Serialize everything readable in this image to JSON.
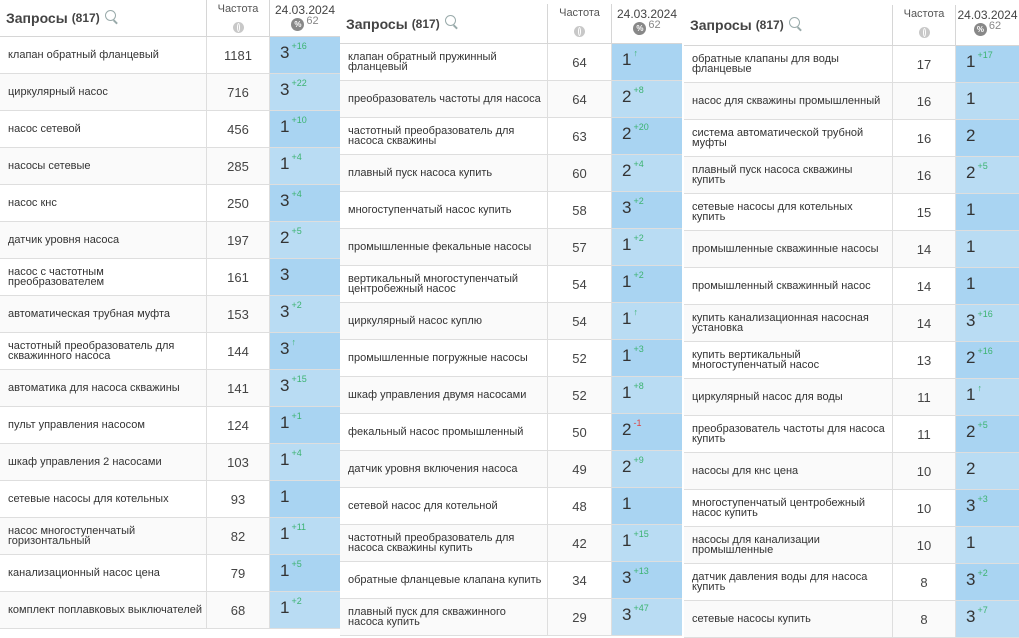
{
  "date": "24.03.2024",
  "date_count": "62",
  "panels": [
    {
      "title": "Запросы",
      "count": "(817)",
      "freq_label": "Частота",
      "rows": [
        {
          "query": "клапан обратный фланцевый",
          "freq": "1181",
          "pos": "3",
          "delta": "+16",
          "dir": "up"
        },
        {
          "query": "циркулярный насос",
          "freq": "716",
          "pos": "3",
          "delta": "+22",
          "dir": "up"
        },
        {
          "query": "насос сетевой",
          "freq": "456",
          "pos": "1",
          "delta": "+10",
          "dir": "up"
        },
        {
          "query": "насосы сетевые",
          "freq": "285",
          "pos": "1",
          "delta": "+4",
          "dir": "up"
        },
        {
          "query": "насос кнс",
          "freq": "250",
          "pos": "3",
          "delta": "+4",
          "dir": "up"
        },
        {
          "query": "датчик уровня насоса",
          "freq": "197",
          "pos": "2",
          "delta": "+5",
          "dir": "up"
        },
        {
          "query": "насос с частотным преобразователем",
          "freq": "161",
          "pos": "3",
          "delta": "",
          "dir": ""
        },
        {
          "query": "автоматическая трубная муфта",
          "freq": "153",
          "pos": "3",
          "delta": "+2",
          "dir": "up"
        },
        {
          "query": "частотный преобразователь для скважинного насоса",
          "freq": "144",
          "pos": "3",
          "delta": "↑",
          "dir": "up"
        },
        {
          "query": "автоматика для насоса скважины",
          "freq": "141",
          "pos": "3",
          "delta": "+15",
          "dir": "up"
        },
        {
          "query": "пульт управления насосом",
          "freq": "124",
          "pos": "1",
          "delta": "+1",
          "dir": "up"
        },
        {
          "query": "шкаф управления 2 насосами",
          "freq": "103",
          "pos": "1",
          "delta": "+4",
          "dir": "up"
        },
        {
          "query": "сетевые насосы для котельных",
          "freq": "93",
          "pos": "1",
          "delta": "",
          "dir": ""
        },
        {
          "query": "насос многоступенчатый горизонтальный",
          "freq": "82",
          "pos": "1",
          "delta": "+11",
          "dir": "up"
        },
        {
          "query": "канализационный насос цена",
          "freq": "79",
          "pos": "1",
          "delta": "+5",
          "dir": "up"
        },
        {
          "query": "комплект поплавковых выключателей",
          "freq": "68",
          "pos": "1",
          "delta": "+2",
          "dir": "up"
        }
      ]
    },
    {
      "title": "Запросы",
      "count": "(817)",
      "freq_label": "Частота",
      "rows": [
        {
          "query": "клапан обратный пружинный фланцевый",
          "freq": "64",
          "pos": "1",
          "delta": "↑",
          "dir": "up"
        },
        {
          "query": "преобразователь частоты для насоса",
          "freq": "64",
          "pos": "2",
          "delta": "+8",
          "dir": "up"
        },
        {
          "query": "частотный преобразователь для насоса скважины",
          "freq": "63",
          "pos": "2",
          "delta": "+20",
          "dir": "up"
        },
        {
          "query": "плавный пуск насоса купить",
          "freq": "60",
          "pos": "2",
          "delta": "+4",
          "dir": "up"
        },
        {
          "query": "многоступенчатый насос купить",
          "freq": "58",
          "pos": "3",
          "delta": "+2",
          "dir": "up"
        },
        {
          "query": "промышленные фекальные насосы",
          "freq": "57",
          "pos": "1",
          "delta": "+2",
          "dir": "up"
        },
        {
          "query": "вертикальный многоступенчатый центробежный насос",
          "freq": "54",
          "pos": "1",
          "delta": "+2",
          "dir": "up"
        },
        {
          "query": "циркулярный насос куплю",
          "freq": "54",
          "pos": "1",
          "delta": "↑",
          "dir": "up"
        },
        {
          "query": "промышленные погружные насосы",
          "freq": "52",
          "pos": "1",
          "delta": "+3",
          "dir": "up"
        },
        {
          "query": "шкаф управления двумя насосами",
          "freq": "52",
          "pos": "1",
          "delta": "+8",
          "dir": "up"
        },
        {
          "query": "фекальный насос промышленный",
          "freq": "50",
          "pos": "2",
          "delta": "-1",
          "dir": "down"
        },
        {
          "query": "датчик уровня включения насоса",
          "freq": "49",
          "pos": "2",
          "delta": "+9",
          "dir": "up"
        },
        {
          "query": "сетевой насос для котельной",
          "freq": "48",
          "pos": "1",
          "delta": "",
          "dir": ""
        },
        {
          "query": "частотный преобразователь для насоса скважины купить",
          "freq": "42",
          "pos": "1",
          "delta": "+15",
          "dir": "up"
        },
        {
          "query": "обратные фланцевые клапана купить",
          "freq": "34",
          "pos": "3",
          "delta": "+13",
          "dir": "up"
        },
        {
          "query": "плавный пуск для скважинного насоса купить",
          "freq": "29",
          "pos": "3",
          "delta": "+47",
          "dir": "up"
        }
      ]
    },
    {
      "title": "Запросы",
      "count": "(817)",
      "freq_label": "Частота",
      "rows": [
        {
          "query": "обратные клапаны для воды фланцевые",
          "freq": "17",
          "pos": "1",
          "delta": "+17",
          "dir": "up"
        },
        {
          "query": "насос для скважины промышленный",
          "freq": "16",
          "pos": "1",
          "delta": "",
          "dir": ""
        },
        {
          "query": "система автоматической трубной муфты",
          "freq": "16",
          "pos": "2",
          "delta": "",
          "dir": ""
        },
        {
          "query": "плавный пуск насоса скважины купить",
          "freq": "16",
          "pos": "2",
          "delta": "+5",
          "dir": "up"
        },
        {
          "query": "сетевые насосы для котельных купить",
          "freq": "15",
          "pos": "1",
          "delta": "",
          "dir": ""
        },
        {
          "query": "промышленные скважинные насосы",
          "freq": "14",
          "pos": "1",
          "delta": "",
          "dir": ""
        },
        {
          "query": "промышленный скважинный насос",
          "freq": "14",
          "pos": "1",
          "delta": "",
          "dir": ""
        },
        {
          "query": "купить канализационная насосная установка",
          "freq": "14",
          "pos": "3",
          "delta": "+16",
          "dir": "up"
        },
        {
          "query": "купить вертикальный многоступенчатый насос",
          "freq": "13",
          "pos": "2",
          "delta": "+16",
          "dir": "up"
        },
        {
          "query": "циркулярный насос для воды",
          "freq": "11",
          "pos": "1",
          "delta": "↑",
          "dir": "up"
        },
        {
          "query": "преобразователь частоты для насоса купить",
          "freq": "11",
          "pos": "2",
          "delta": "+5",
          "dir": "up"
        },
        {
          "query": "насосы для кнс цена",
          "freq": "10",
          "pos": "2",
          "delta": "",
          "dir": ""
        },
        {
          "query": "многоступенчатый центробежный насос купить",
          "freq": "10",
          "pos": "3",
          "delta": "+3",
          "dir": "up"
        },
        {
          "query": "насосы для канализации промышленные",
          "freq": "10",
          "pos": "1",
          "delta": "",
          "dir": ""
        },
        {
          "query": "датчик давления воды для насоса купить",
          "freq": "8",
          "pos": "3",
          "delta": "+2",
          "dir": "up"
        },
        {
          "query": "сетевые насосы купить",
          "freq": "8",
          "pos": "3",
          "delta": "+7",
          "dir": "up"
        }
      ]
    }
  ]
}
